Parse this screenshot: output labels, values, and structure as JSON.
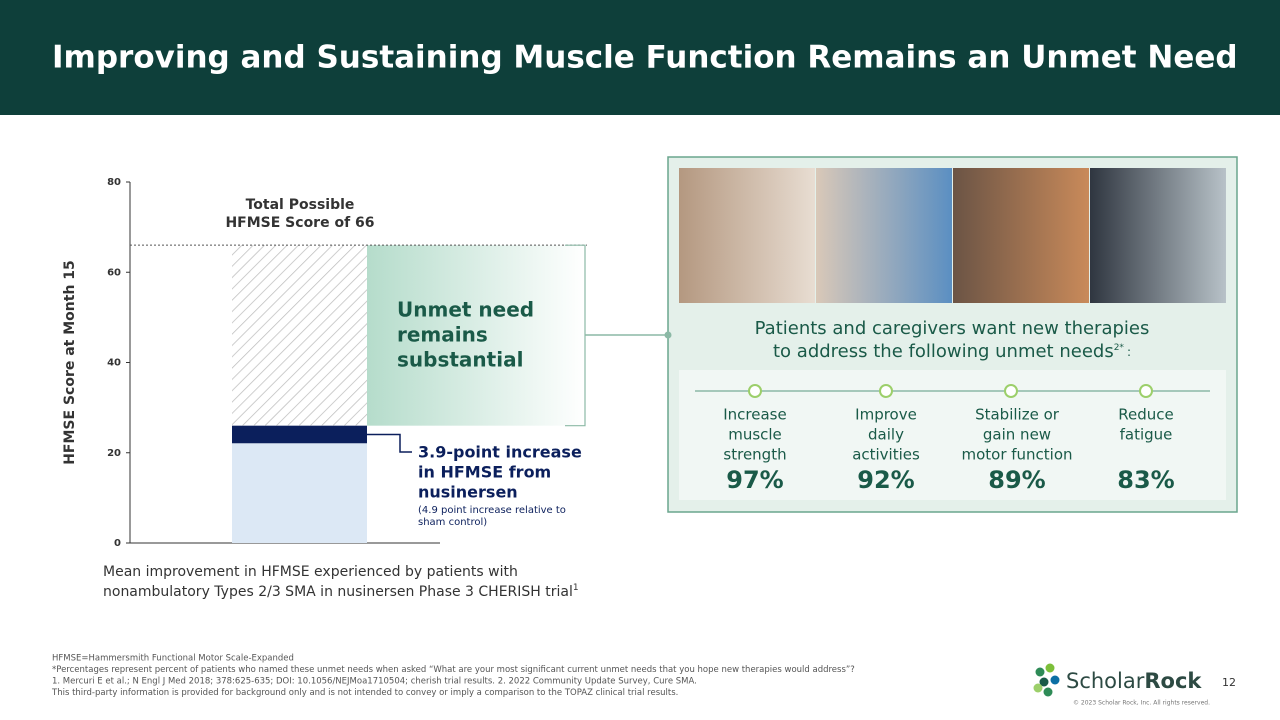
{
  "header": {
    "title": "Improving and Sustaining Muscle Function Remains an Unmet Need"
  },
  "chart_data": {
    "type": "stacked-bar",
    "ylabel": "HFMSE Score at Month 15",
    "ylim": [
      0,
      80
    ],
    "yticks": [
      0,
      20,
      40,
      60,
      80
    ],
    "values": [
      22.1,
      3.9,
      40
    ],
    "colors": [
      "#dce8f5",
      "#0b1f5c",
      "#bdbdbd"
    ],
    "reference_line": 66,
    "reference_label": [
      "Total Possible",
      "HFMSE Score of 66"
    ],
    "annotations": {
      "unmet": [
        "Unmet need",
        "remains",
        "substantial"
      ],
      "increase": [
        "3.9-point increase",
        "in HFMSE from",
        "nusinersen"
      ],
      "increase_note": [
        "(4.9 point increase relative to",
        "sham control)"
      ]
    },
    "caption": [
      "Mean improvement in HFMSE experienced by patients with",
      "nonambulatory Types 2/3 SMA in nusinersen Phase 3 CHERISH trial"
    ],
    "caption_ref": "1"
  },
  "panel": {
    "heading": [
      "Patients and caregivers want new therapies",
      "to address the following unmet needs"
    ],
    "heading_ref": "2*",
    "heading_end": ":",
    "items": [
      {
        "label": [
          "Increase",
          "muscle",
          "strength"
        ],
        "value": "97%"
      },
      {
        "label": [
          "Improve",
          "daily",
          "activities"
        ],
        "value": "92%"
      },
      {
        "label": [
          "Stabilize or",
          "gain new",
          "motor function"
        ],
        "value": "89%"
      },
      {
        "label": [
          "Reduce",
          "fatigue"
        ],
        "value": "83%"
      }
    ]
  },
  "footer": {
    "notes": [
      "HFMSE=Hammersmith Functional Motor Scale-Expanded",
      "*Percentages represent percent of patients who named these unmet needs when asked “What are your most significant current unmet needs that you hope new therapies would address”?",
      "1. Mercuri E et al.; N Engl J Med 2018; 378:625-635; DOI: 10.1056/NEJMoa1710504; cherish trial results. 2. 2022 Community Update Survey, Cure SMA.",
      "This third-party information is provided for background only and is not intended to convey or imply  a comparison to the TOPAZ clinical trial results."
    ],
    "logo": "Scholar",
    "logo_bold": "Rock",
    "copyright": "© 2023 Scholar Rock, Inc. All rights reserved.",
    "page": "12"
  }
}
